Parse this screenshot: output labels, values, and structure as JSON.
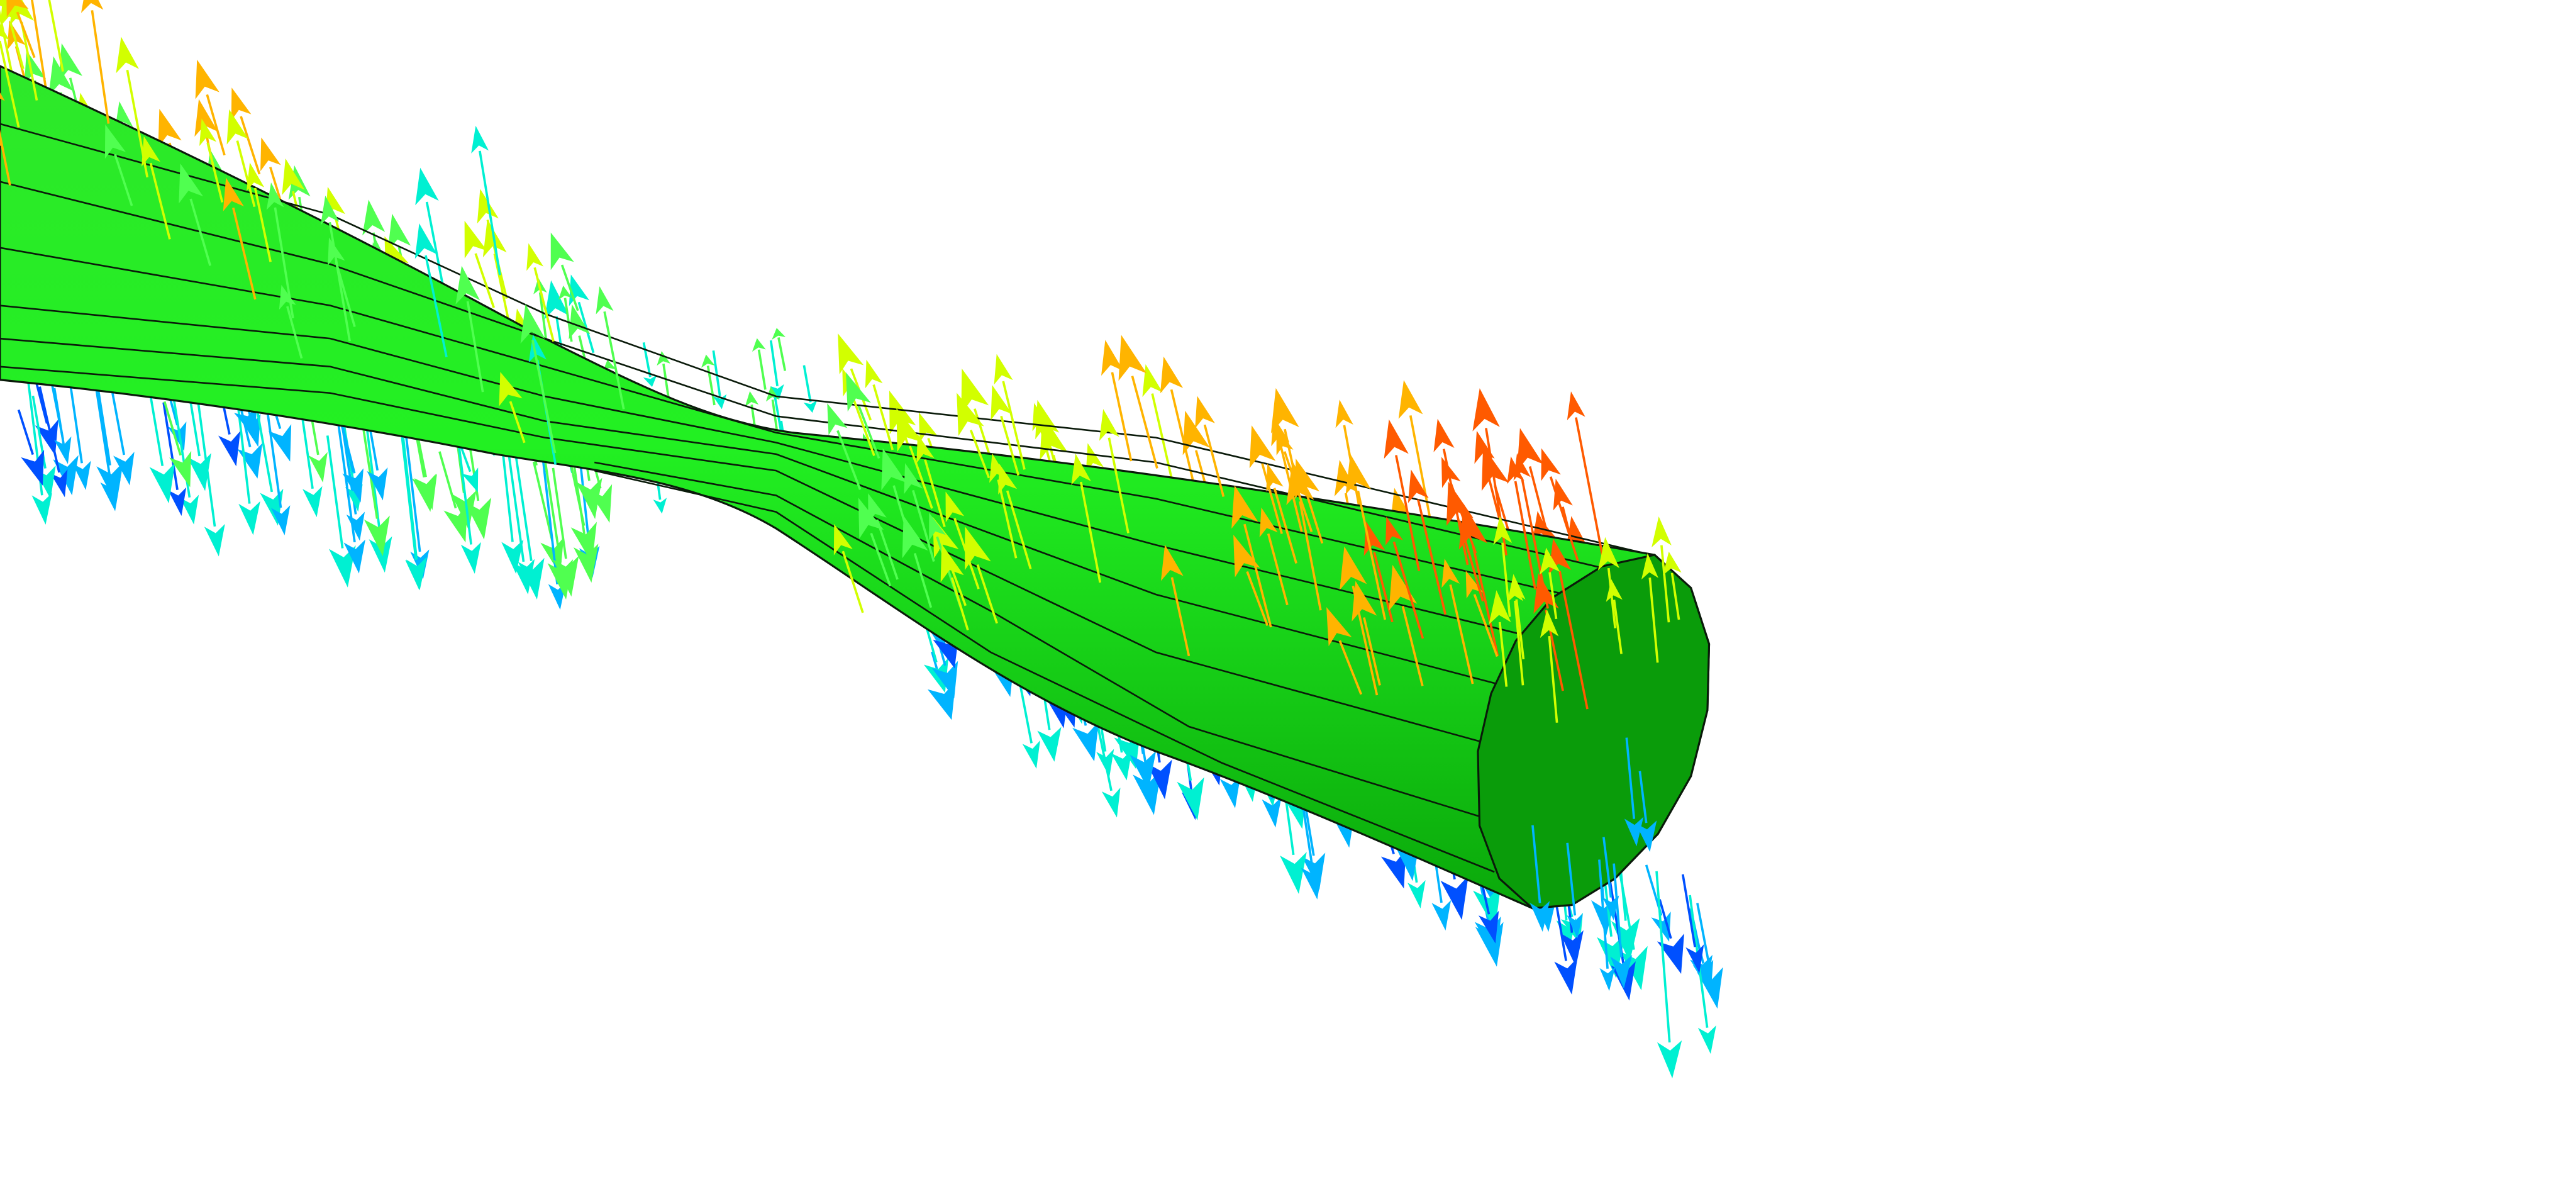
{
  "scene": {
    "background_color": "#ffffff",
    "body_colors": {
      "light": "#4dee3c",
      "mid": "#12e012",
      "dark": "#0cb40c",
      "shadow": "#08a008",
      "end_cap": "#0a9c0a",
      "edge": "#0a1a0a"
    },
    "vector_colormap": [
      "#0050ff",
      "#00b4ff",
      "#00f0d2",
      "#50ff50",
      "#d2ff00",
      "#ffb400",
      "#ff5a00"
    ],
    "icons": {
      "vector_arrow": "arrow-glyph",
      "surface": "twisted-tube-mesh"
    }
  }
}
